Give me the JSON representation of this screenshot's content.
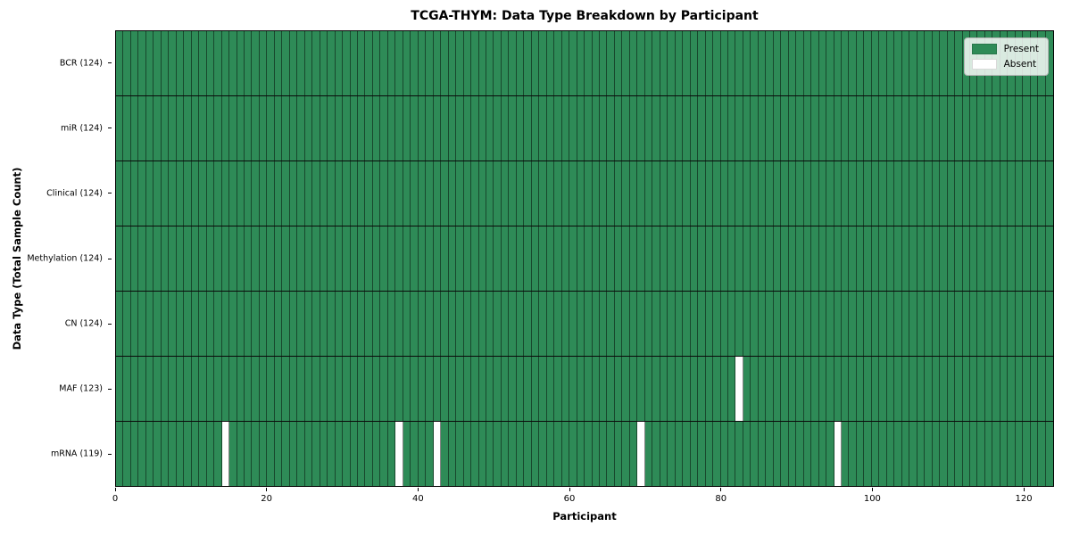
{
  "chart_data": {
    "type": "heatmap",
    "title": "TCGA-THYM: Data Type Breakdown by Participant",
    "xlabel": "Participant",
    "ylabel": "Data Type (Total Sample Count)",
    "x_ticks": [
      0,
      20,
      40,
      60,
      80,
      100,
      120
    ],
    "xlim": [
      0,
      124
    ],
    "n_participants": 124,
    "rows": [
      {
        "label": "BCR (124)",
        "present_count": 124,
        "absent_participants": []
      },
      {
        "label": "miR (124)",
        "present_count": 124,
        "absent_participants": []
      },
      {
        "label": "Clinical (124)",
        "present_count": 124,
        "absent_participants": []
      },
      {
        "label": "Methylation (124)",
        "present_count": 124,
        "absent_participants": []
      },
      {
        "label": "CN (124)",
        "present_count": 124,
        "absent_participants": []
      },
      {
        "label": "MAF (123)",
        "present_count": 123,
        "absent_participants": [
          82
        ]
      },
      {
        "label": "mRNA (119)",
        "present_count": 119,
        "absent_participants": [
          14,
          37,
          42,
          69,
          95
        ]
      }
    ],
    "legend": [
      {
        "label": "Present",
        "color": "#2e8b57"
      },
      {
        "label": "Absent",
        "color": "#ffffff"
      }
    ],
    "colors": {
      "present": "#2e8b57",
      "absent": "#ffffff",
      "cell_line": "rgba(0,0,0,0.48)",
      "row_line": "#0a0a0a"
    },
    "legend_position": "upper right",
    "grid": true
  }
}
